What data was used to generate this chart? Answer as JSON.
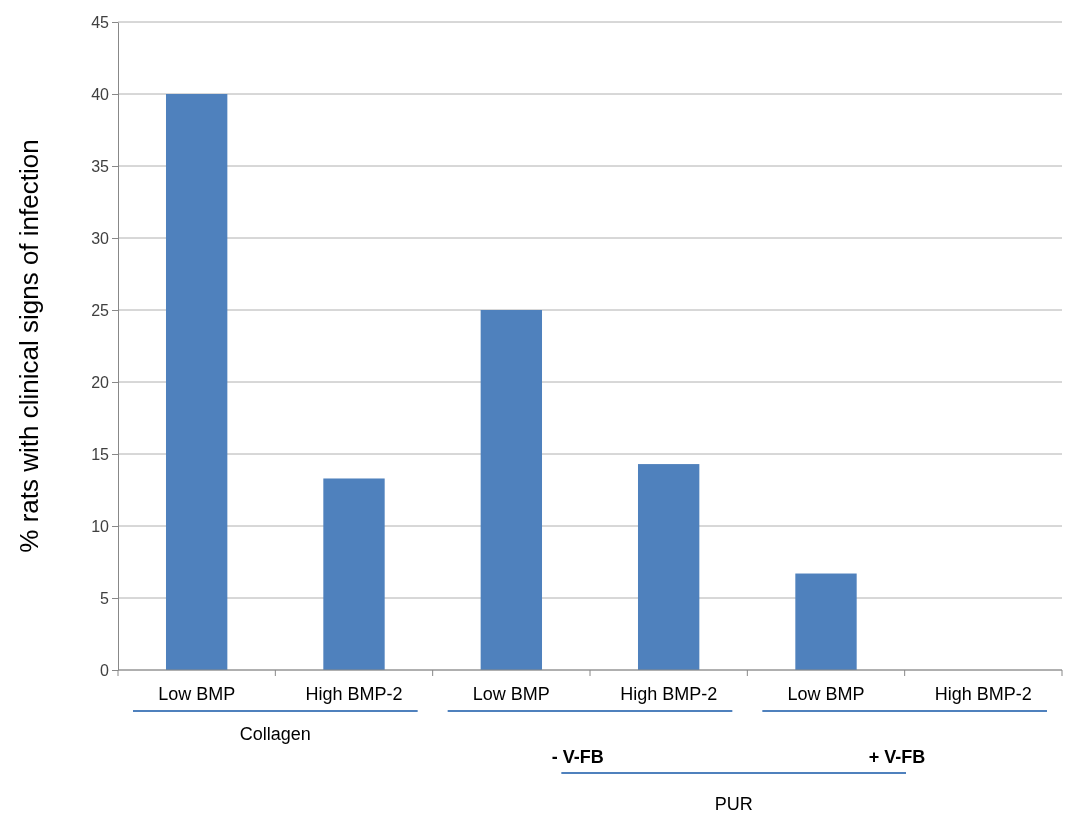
{
  "chart_data": {
    "type": "bar",
    "ylabel": "% rats with clinical signs of infection",
    "categories": [
      "Low BMP",
      "High BMP-2",
      "Low BMP",
      "High BMP-2",
      "Low BMP",
      "High BMP-2"
    ],
    "values": [
      40,
      13.3,
      25,
      14.3,
      6.7,
      0
    ],
    "color": "#4f81bd",
    "ylim": [
      0,
      45
    ],
    "yticks": [
      0,
      5,
      10,
      15,
      20,
      25,
      30,
      35,
      40,
      45
    ],
    "grid": "y",
    "annotations": [
      "Collagen",
      "- V-FB",
      "+ V-FB",
      "PUR"
    ]
  }
}
